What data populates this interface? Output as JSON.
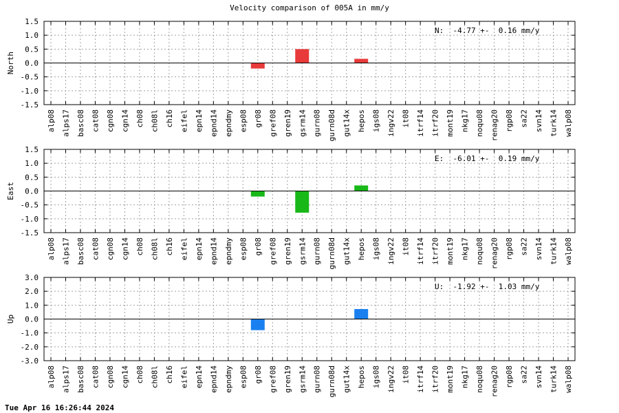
{
  "title": "Velocity comparison of 005A in mm/y",
  "timestamp": "Tue Apr 16 16:26:44 2024",
  "chart_data": [
    {
      "type": "bar",
      "ylabel": "North",
      "ylim": [
        -1.5,
        1.5
      ],
      "yticks": [
        "1.5",
        "1.0",
        "0.5",
        "0.0",
        "-0.5",
        "-1.0",
        "-1.5"
      ],
      "color": "#e83a3a",
      "annotation": "N:  -4.77 +-  0.16 mm/y",
      "grid": true,
      "categories": [
        "alp08",
        "alps17",
        "basc08",
        "cat08",
        "cgn08",
        "cgn14",
        "ch08",
        "ch08l",
        "ch16",
        "eifel",
        "epn14",
        "epnd14",
        "epndmy",
        "esp08",
        "gr08",
        "gref08",
        "gren19",
        "gsrm14",
        "gurn08",
        "gurn08d",
        "gut14x",
        "hepos",
        "igs08",
        "ingv22",
        "it08",
        "itrf14",
        "itrf20",
        "mont19",
        "nkg17",
        "noqu08",
        "renag20",
        "rgp08",
        "sa22",
        "svn14",
        "turk14",
        "walp08"
      ],
      "values": [
        0,
        0,
        0,
        0,
        0,
        0,
        0,
        0,
        0,
        0,
        0,
        0,
        0,
        0,
        -0.2,
        0,
        0,
        0.5,
        0,
        0,
        0,
        0.15,
        0,
        0,
        0,
        0,
        0,
        0,
        0,
        0,
        0,
        0,
        0,
        0,
        0,
        0
      ]
    },
    {
      "type": "bar",
      "ylabel": "East",
      "ylim": [
        -1.5,
        1.5
      ],
      "yticks": [
        "1.5",
        "1.0",
        "0.5",
        "0.0",
        "-0.5",
        "-1.0",
        "-1.5"
      ],
      "color": "#18b818",
      "annotation": "E:  -6.01 +-  0.19 mm/y",
      "grid": true,
      "categories": [
        "alp08",
        "alps17",
        "basc08",
        "cat08",
        "cgn08",
        "cgn14",
        "ch08",
        "ch08l",
        "ch16",
        "eifel",
        "epn14",
        "epnd14",
        "epndmy",
        "esp08",
        "gr08",
        "gref08",
        "gren19",
        "gsrm14",
        "gurn08",
        "gurn08d",
        "gut14x",
        "hepos",
        "igs08",
        "ingv22",
        "it08",
        "itrf14",
        "itrf20",
        "mont19",
        "nkg17",
        "noqu08",
        "renag20",
        "rgp08",
        "sa22",
        "svn14",
        "turk14",
        "walp08"
      ],
      "values": [
        0,
        0,
        0,
        0,
        0,
        0,
        0,
        0,
        0,
        0,
        0,
        0,
        0,
        0,
        -0.2,
        0,
        0,
        -0.78,
        0,
        0,
        0,
        0.2,
        0,
        0,
        0,
        0,
        0,
        0,
        0,
        0,
        0,
        0,
        0,
        0,
        0,
        0
      ]
    },
    {
      "type": "bar",
      "ylabel": "Up",
      "ylim": [
        -3.0,
        3.0
      ],
      "yticks": [
        "3.0",
        "2.0",
        "1.0",
        "0.0",
        "-1.0",
        "-2.0",
        "-3.0"
      ],
      "color": "#1a80f0",
      "annotation": "U:  -1.92 +-  1.03 mm/y",
      "grid": true,
      "categories": [
        "alp08",
        "alps17",
        "basc08",
        "cat08",
        "cgn08",
        "cgn14",
        "ch08",
        "ch08l",
        "ch16",
        "eifel",
        "epn14",
        "epnd14",
        "epndmy",
        "esp08",
        "gr08",
        "gref08",
        "gren19",
        "gsrm14",
        "gurn08",
        "gurn08d",
        "gut14x",
        "hepos",
        "igs08",
        "ingv22",
        "it08",
        "itrf14",
        "itrf20",
        "mont19",
        "nkg17",
        "noqu08",
        "renag20",
        "rgp08",
        "sa22",
        "svn14",
        "turk14",
        "walp08"
      ],
      "values": [
        0,
        0,
        0,
        0,
        0,
        0,
        0,
        0,
        0,
        0,
        0,
        0,
        0,
        0,
        -0.8,
        0,
        0,
        0,
        0,
        0,
        0,
        0.72,
        0,
        0,
        0,
        0,
        0,
        0,
        0,
        0,
        0,
        0,
        0,
        0,
        0,
        0
      ]
    }
  ]
}
